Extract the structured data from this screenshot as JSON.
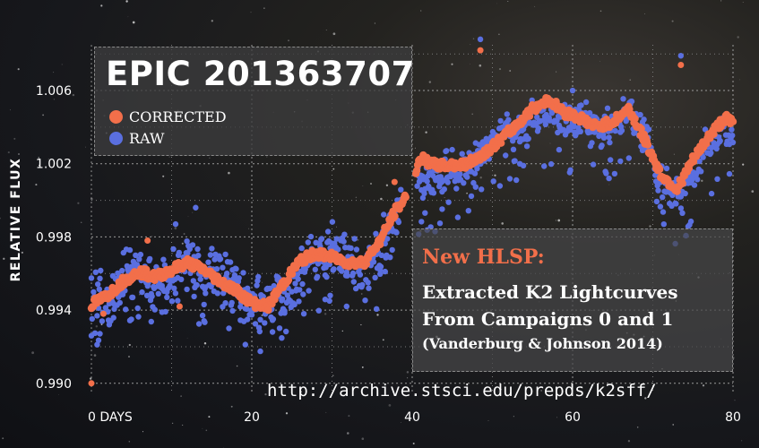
{
  "chart_data": {
    "type": "scatter",
    "title": "EPIC 201363707",
    "xlabel": "",
    "ylabel": "RELATIVE FLUX",
    "xlim": [
      0,
      80
    ],
    "ylim": [
      0.9895,
      1.0085
    ],
    "x_ticks": [
      0,
      20,
      40,
      60,
      80
    ],
    "x_tick_labels": [
      "0 DAYS",
      "20",
      "40",
      "60",
      "80"
    ],
    "y_ticks": [
      0.99,
      0.994,
      0.998,
      1.002,
      1.006
    ],
    "y_tick_labels": [
      "0.990",
      "0.994",
      "0.998",
      "1.002",
      "1.006"
    ],
    "grid": true,
    "legend_position": "top-left",
    "series": [
      {
        "name": "CORRECTED",
        "color": "#f26f4a",
        "x": [
          0,
          2,
          4,
          6,
          8,
          10,
          12,
          14,
          16,
          18,
          20,
          22,
          24,
          26,
          28,
          30,
          32,
          34,
          36,
          38,
          39,
          41,
          43,
          45,
          47,
          49,
          51,
          53,
          55,
          57,
          59,
          61,
          63,
          65,
          67,
          69,
          71,
          73,
          75,
          77,
          79,
          80
        ],
        "y": [
          0.9943,
          0.9948,
          0.9956,
          0.9961,
          0.9958,
          0.9962,
          0.9966,
          0.9962,
          0.9956,
          0.9951,
          0.9944,
          0.9942,
          0.9955,
          0.9967,
          0.9971,
          0.9969,
          0.9966,
          0.9966,
          0.9978,
          0.9995,
          1.0,
          1.0023,
          1.0019,
          1.0019,
          1.002,
          1.0026,
          1.0033,
          1.0041,
          1.005,
          1.0055,
          1.0048,
          1.0045,
          1.004,
          1.0043,
          1.005,
          1.0033,
          1.0014,
          1.0006,
          1.0022,
          1.0035,
          1.0045,
          1.0042
        ]
      },
      {
        "name": "RAW",
        "color": "#5a6fe0",
        "x": [
          0,
          2,
          4,
          6,
          8,
          10,
          12,
          14,
          16,
          18,
          20,
          22,
          24,
          26,
          28,
          30,
          32,
          34,
          36,
          38,
          39,
          41,
          43,
          45,
          47,
          49,
          51,
          53,
          55,
          57,
          59,
          61,
          63,
          65,
          67,
          69,
          71,
          73,
          75,
          77,
          79,
          80
        ],
        "y": [
          0.995,
          0.9942,
          0.9958,
          0.9963,
          0.9957,
          0.9956,
          0.9973,
          0.9958,
          0.9964,
          0.9951,
          0.994,
          0.9946,
          0.995,
          0.996,
          0.9968,
          0.9974,
          0.9969,
          0.996,
          0.9972,
          0.999,
          1.0005,
          1.001,
          1.0012,
          1.0018,
          1.0017,
          1.0028,
          1.0036,
          1.0036,
          1.0044,
          1.005,
          1.0042,
          1.0045,
          1.004,
          1.0039,
          1.0046,
          1.0038,
          1.001,
          1.0003,
          1.0014,
          1.0032,
          1.004,
          1.0038
        ]
      }
    ],
    "annotations": [
      "New HLSP:",
      "Extracted K2 Lightcurves",
      "From Campaigns 0 and 1",
      "(Vanderburg & Johnson 2014)",
      "http://archive.stsci.edu/prepds/k2sff/"
    ]
  },
  "legend": {
    "corrected_label": "CORRECTED",
    "raw_label": "RAW"
  },
  "info": {
    "heading": "New HLSP:",
    "line1": "Extracted K2 Lightcurves",
    "line2": "From Campaigns 0 and 1",
    "line3": "(Vanderburg & Johnson 2014)"
  },
  "url": "http://archive.stsci.edu/prepds/k2sff/"
}
